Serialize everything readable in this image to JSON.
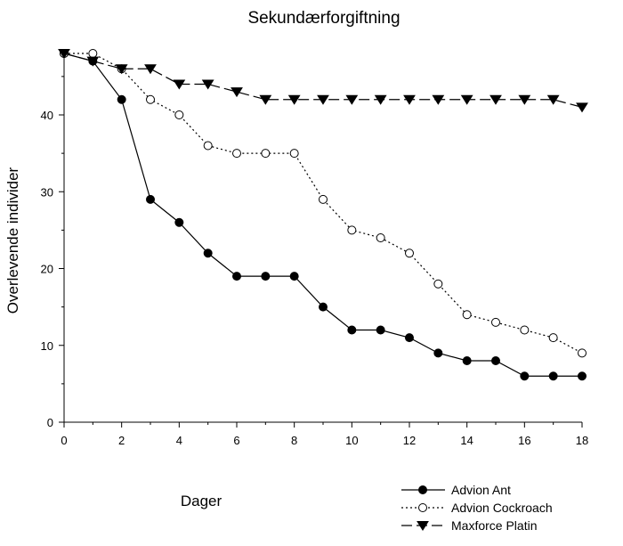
{
  "chart_data": {
    "type": "line",
    "title": "Sekundærforgiftning",
    "xlabel": "Dager",
    "ylabel": "Overlevende individer",
    "xlim": [
      0,
      18
    ],
    "ylim": [
      0,
      48
    ],
    "xticks": [
      0,
      2,
      4,
      6,
      8,
      10,
      12,
      14,
      16,
      18
    ],
    "yticks": [
      0,
      10,
      20,
      30,
      40
    ],
    "grid": false,
    "legend_position": "bottom-right",
    "series": [
      {
        "name": "Advion Ant",
        "marker": "filled-circle",
        "line_style": "solid",
        "color": "#000000",
        "x": [
          0,
          1,
          2,
          3,
          4,
          5,
          6,
          7,
          8,
          9,
          10,
          11,
          12,
          13,
          14,
          15,
          16,
          17,
          18
        ],
        "y": [
          48,
          47,
          42,
          29,
          26,
          22,
          19,
          19,
          19,
          15,
          12,
          12,
          11,
          9,
          8,
          8,
          6,
          6,
          6
        ]
      },
      {
        "name": "Advion Cockroach",
        "marker": "open-circle",
        "line_style": "dotted",
        "color": "#000000",
        "x": [
          0,
          1,
          2,
          3,
          4,
          5,
          6,
          7,
          8,
          9,
          10,
          11,
          12,
          13,
          14,
          15,
          16,
          17,
          18
        ],
        "y": [
          48,
          48,
          46,
          42,
          40,
          36,
          35,
          35,
          35,
          29,
          25,
          24,
          22,
          18,
          14,
          13,
          12,
          11,
          9
        ]
      },
      {
        "name": "Maxforce Platin",
        "marker": "filled-triangle-down",
        "line_style": "dashed",
        "color": "#000000",
        "x": [
          0,
          1,
          2,
          3,
          4,
          5,
          6,
          7,
          8,
          9,
          10,
          11,
          12,
          13,
          14,
          15,
          16,
          17,
          18
        ],
        "y": [
          48,
          47,
          46,
          46,
          44,
          44,
          43,
          42,
          42,
          42,
          42,
          42,
          42,
          42,
          42,
          42,
          42,
          42,
          41
        ]
      }
    ]
  }
}
